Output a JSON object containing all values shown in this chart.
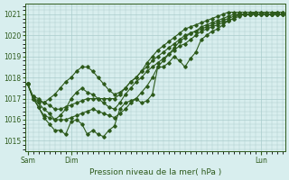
{
  "background_color": "#d8eeee",
  "plot_bg_color": "#d8eeee",
  "grid_color": "#aacccc",
  "line_color": "#2d5a1b",
  "title": "Pression niveau de la mer( hPa )",
  "xlabel_ticks": [
    "Sam",
    "Dim",
    "Lun"
  ],
  "xlabel_tick_positions": [
    0,
    8,
    43
  ],
  "ylim": [
    1014.5,
    1021.5
  ],
  "yticks": [
    1015,
    1016,
    1017,
    1018,
    1019,
    1020,
    1021
  ],
  "xlim": [
    -0.5,
    47.5
  ],
  "figsize": [
    3.2,
    2.0
  ],
  "dpi": 100,
  "series": [
    [
      1017.7,
      1017.0,
      1016.6,
      1016.1,
      1015.8,
      1015.5,
      1015.5,
      1015.3,
      1015.9,
      1016.0,
      1015.8,
      1015.3,
      1015.5,
      1015.3,
      1015.2,
      1015.5,
      1015.7,
      1016.5,
      1016.8,
      1016.9,
      1017.0,
      1016.8,
      1016.9,
      1017.2,
      1018.5,
      1018.5,
      1018.7,
      1019.0,
      1018.8,
      1018.5,
      1018.9,
      1019.2,
      1019.8,
      1020.0,
      1020.2,
      1020.3,
      1020.5,
      1020.7,
      1020.8,
      1021.0,
      1021.0,
      1021.0,
      1021.1,
      1021.1,
      1021.0,
      1021.0,
      1021.1,
      1021.1
    ],
    [
      1017.7,
      1017.0,
      1016.8,
      1016.5,
      1016.3,
      1016.0,
      1016.2,
      1016.5,
      1017.0,
      1017.3,
      1017.5,
      1017.3,
      1017.2,
      1017.0,
      1016.8,
      1016.6,
      1016.5,
      1016.8,
      1017.2,
      1017.5,
      1017.8,
      1018.0,
      1018.3,
      1018.5,
      1018.7,
      1018.9,
      1019.1,
      1019.3,
      1019.5,
      1019.6,
      1019.8,
      1020.0,
      1020.2,
      1020.3,
      1020.4,
      1020.5,
      1020.6,
      1020.7,
      1020.8,
      1020.9,
      1021.0,
      1021.0,
      1021.0,
      1021.0,
      1021.0,
      1021.0,
      1021.0,
      1021.0
    ],
    [
      1017.7,
      1017.1,
      1017.0,
      1016.8,
      1016.7,
      1016.5,
      1016.5,
      1016.6,
      1016.7,
      1016.8,
      1016.9,
      1017.0,
      1017.0,
      1017.0,
      1017.0,
      1017.0,
      1017.0,
      1017.2,
      1017.5,
      1017.8,
      1018.0,
      1018.3,
      1018.5,
      1018.8,
      1019.0,
      1019.2,
      1019.4,
      1019.6,
      1019.8,
      1020.0,
      1020.1,
      1020.2,
      1020.3,
      1020.4,
      1020.5,
      1020.6,
      1020.7,
      1020.8,
      1020.9,
      1021.0,
      1021.0,
      1021.0,
      1021.0,
      1021.0,
      1021.0,
      1021.0,
      1021.0,
      1021.0
    ],
    [
      1017.7,
      1017.0,
      1016.9,
      1016.8,
      1017.0,
      1017.2,
      1017.5,
      1017.8,
      1018.0,
      1018.3,
      1018.5,
      1018.5,
      1018.3,
      1018.0,
      1017.7,
      1017.4,
      1017.2,
      1017.3,
      1017.5,
      1017.8,
      1018.0,
      1018.3,
      1018.7,
      1019.0,
      1019.3,
      1019.5,
      1019.7,
      1019.9,
      1020.1,
      1020.3,
      1020.4,
      1020.5,
      1020.6,
      1020.7,
      1020.8,
      1020.9,
      1021.0,
      1021.1,
      1021.1,
      1021.1,
      1021.1,
      1021.1,
      1021.1,
      1021.1,
      1021.1,
      1021.1,
      1021.1,
      1021.1
    ],
    [
      1017.7,
      1017.1,
      1016.6,
      1016.2,
      1016.1,
      1016.0,
      1016.0,
      1016.0,
      1016.1,
      1016.2,
      1016.3,
      1016.4,
      1016.5,
      1016.4,
      1016.3,
      1016.2,
      1016.1,
      1016.3,
      1016.5,
      1016.8,
      1017.0,
      1017.3,
      1017.6,
      1018.0,
      1018.5,
      1018.8,
      1019.1,
      1019.4,
      1019.7,
      1019.9,
      1020.1,
      1020.2,
      1020.4,
      1020.5,
      1020.6,
      1020.7,
      1020.8,
      1020.9,
      1021.0,
      1021.0,
      1021.0,
      1021.0,
      1021.0,
      1021.0,
      1021.0,
      1021.0,
      1021.0,
      1021.0
    ]
  ]
}
